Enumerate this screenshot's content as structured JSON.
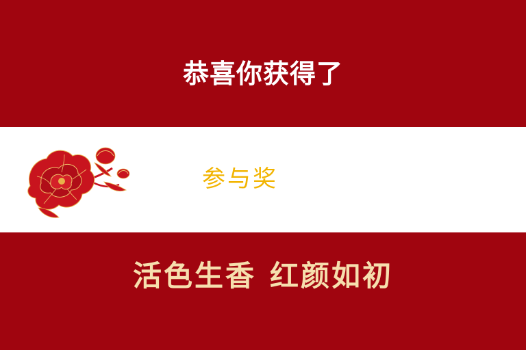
{
  "header": {
    "congrats_text": "恭喜你获得了"
  },
  "prize": {
    "name": "参与奖",
    "decoration_icon": "peony-flower-icon"
  },
  "footer": {
    "slogan_part1": "活色生香",
    "slogan_part2": "红颜如初"
  },
  "colors": {
    "background_red": "#a0050f",
    "band_white": "#ffffff",
    "prize_gold": "#f2b400",
    "slogan_cream": "#f6dfae",
    "peony_red": "#c8141e"
  }
}
